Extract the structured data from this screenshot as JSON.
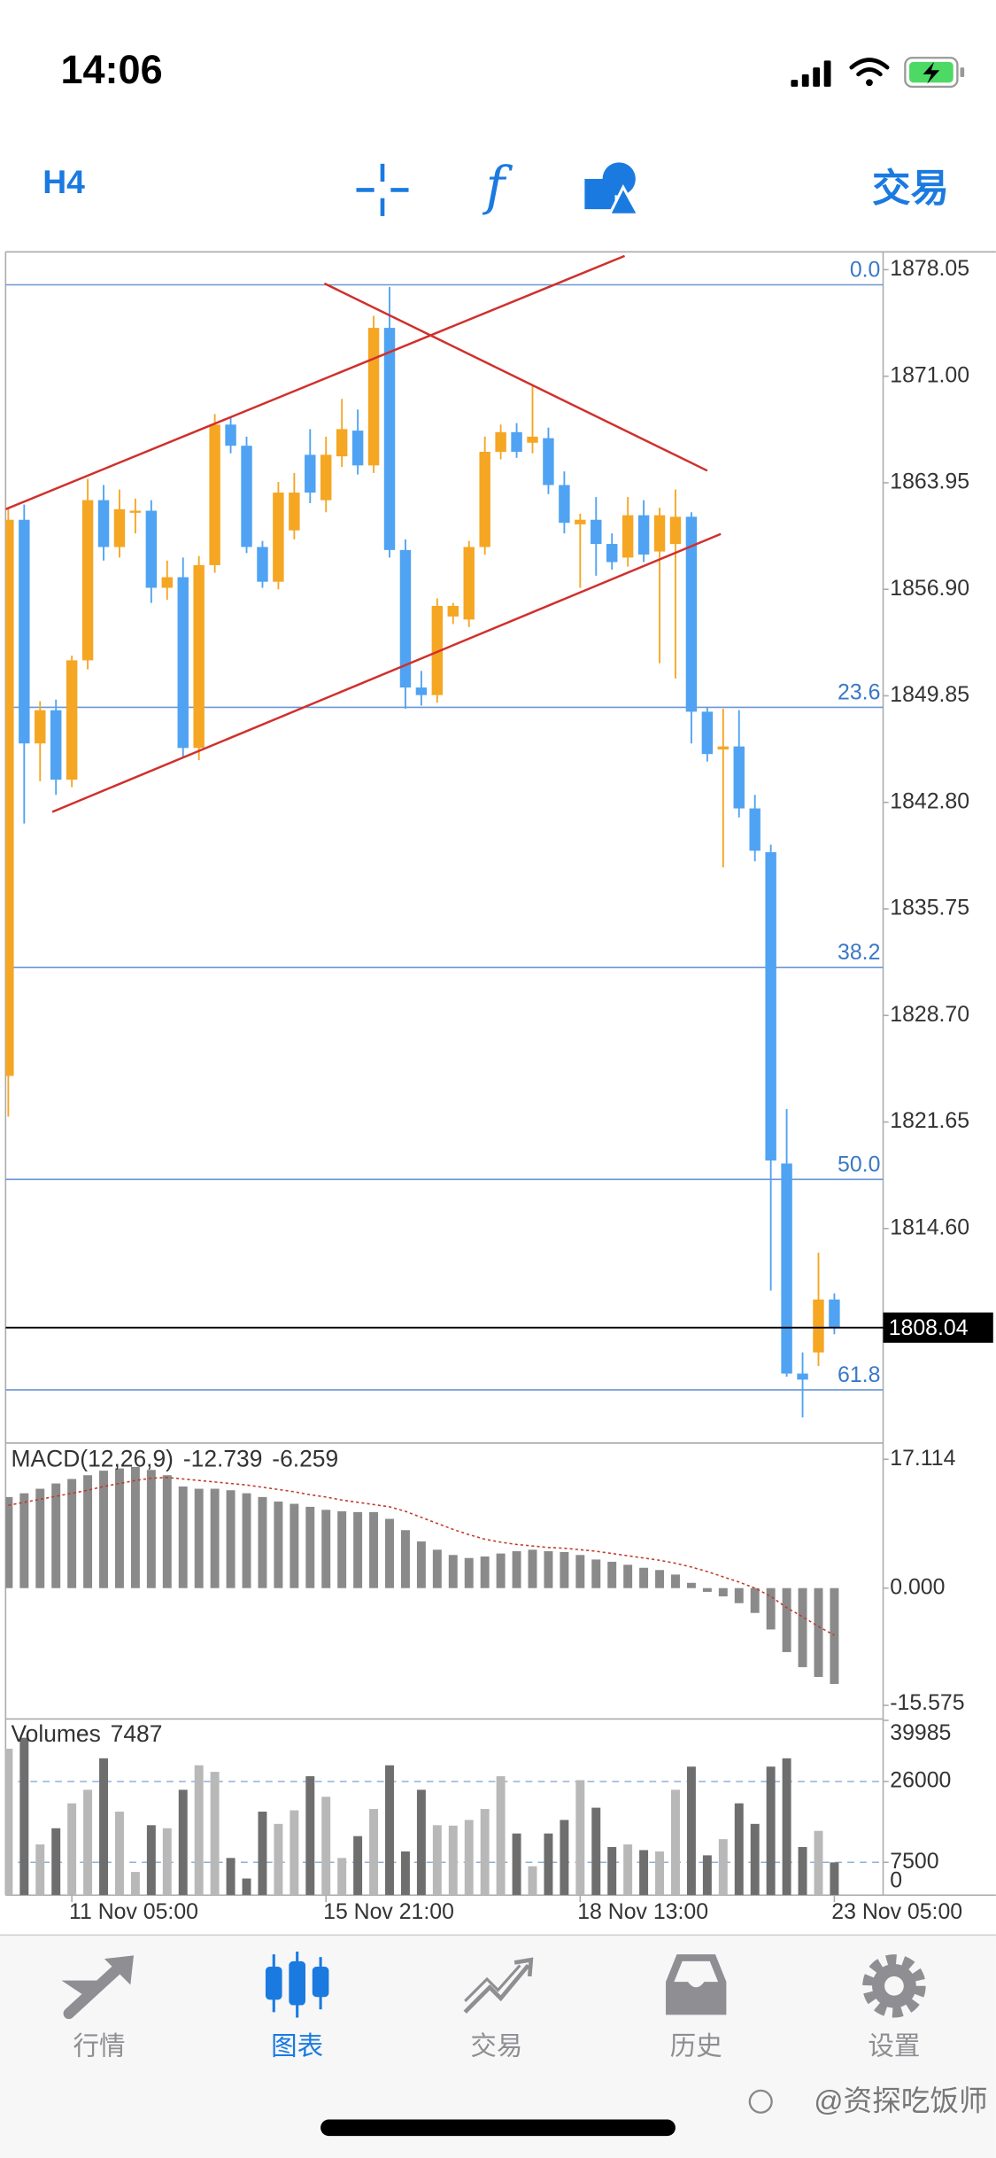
{
  "status_bar": {
    "time": "14:06"
  },
  "toolbar": {
    "timeframe": "H4",
    "trade": "交易"
  },
  "chart_data": [
    {
      "type": "candlestick",
      "open": [
        1824.7,
        1861.5,
        1846.7,
        1848.9,
        1844.3,
        1852.2,
        1862.8,
        1859.7,
        1862.0,
        1862.1,
        1857.0,
        1857.7,
        1846.4,
        1858.5,
        1867.8,
        1866.4,
        1859.7,
        1857.4,
        1860.8,
        1865.8,
        1862.8,
        1865.7,
        1867.4,
        1865.1,
        1874.2,
        1859.5,
        1850.4,
        1849.9,
        1855.1,
        1854.9,
        1859.7,
        1866.0,
        1867.3,
        1866.6,
        1866.9,
        1863.8,
        1861.2,
        1861.5,
        1859.9,
        1859.0,
        1861.8,
        1859.4,
        1859.9,
        1861.7,
        1848.8,
        1846.3,
        1846.5,
        1842.4,
        1839.5,
        1818.9,
        1805.0,
        1806.4,
        1809.9
      ],
      "high": [
        1862.3,
        1862.5,
        1849.5,
        1849.6,
        1852.5,
        1864.2,
        1863.8,
        1863.5,
        1862.9,
        1862.8,
        1858.8,
        1859.0,
        1859.1,
        1868.5,
        1868.3,
        1867.0,
        1860.1,
        1864.0,
        1864.6,
        1867.5,
        1867.0,
        1869.5,
        1868.8,
        1875.0,
        1876.9,
        1860.2,
        1851.5,
        1856.3,
        1856.0,
        1860.1,
        1867.0,
        1867.8,
        1867.9,
        1870.4,
        1867.6,
        1864.7,
        1861.9,
        1863.0,
        1860.6,
        1863.0,
        1862.8,
        1862.3,
        1863.5,
        1862.0,
        1849.1,
        1849.0,
        1848.9,
        1843.3,
        1840.0,
        1822.5,
        1806.4,
        1813.0,
        1810.3
      ],
      "low": [
        1822.0,
        1841.4,
        1844.2,
        1843.3,
        1843.8,
        1851.6,
        1858.8,
        1859.0,
        1860.6,
        1856.0,
        1856.2,
        1845.8,
        1845.6,
        1858.0,
        1865.9,
        1859.3,
        1857.0,
        1856.9,
        1860.2,
        1862.6,
        1862.0,
        1865.0,
        1864.5,
        1864.6,
        1859.0,
        1849.0,
        1849.2,
        1849.4,
        1854.6,
        1854.4,
        1859.2,
        1865.5,
        1865.6,
        1865.9,
        1863.2,
        1860.6,
        1857.0,
        1857.8,
        1858.2,
        1858.4,
        1858.7,
        1852.0,
        1851.0,
        1846.7,
        1845.5,
        1838.5,
        1841.8,
        1838.9,
        1810.5,
        1804.8,
        1802.1,
        1805.5,
        1807.6
      ],
      "close": [
        1861.5,
        1846.7,
        1848.9,
        1844.3,
        1852.2,
        1862.8,
        1859.7,
        1862.2,
        1862.1,
        1857.0,
        1857.7,
        1846.4,
        1858.5,
        1867.8,
        1866.4,
        1859.7,
        1857.4,
        1863.3,
        1863.3,
        1863.3,
        1865.8,
        1867.5,
        1865.1,
        1874.2,
        1859.5,
        1850.4,
        1849.9,
        1855.8,
        1855.8,
        1859.7,
        1866.0,
        1867.3,
        1866.0,
        1867.0,
        1863.8,
        1861.3,
        1861.5,
        1859.9,
        1858.7,
        1861.8,
        1859.2,
        1861.8,
        1861.7,
        1848.8,
        1846.0,
        1846.5,
        1842.4,
        1839.6,
        1819.1,
        1805.0,
        1804.6,
        1809.9,
        1808.0
      ],
      "up_color": "#f5a623",
      "down_color": "#4fa3f2",
      "xlim": [
        -0.17,
        55.07
      ],
      "xticks": [
        {
          "value": 4,
          "label": "11 Nov 05:00"
        },
        {
          "value": 20,
          "label": "15 Nov 21:00"
        },
        {
          "value": 36,
          "label": "18 Nov 13:00"
        },
        {
          "value": 52,
          "label": "23 Nov 05:00"
        }
      ],
      "ylim": [
        1800.45,
        1879.23
      ],
      "yticks": [
        1878.05,
        {
          "value": 1871,
          "label": "1871.00"
        },
        1863.95,
        {
          "value": 1856.9,
          "label": "1856.90"
        },
        1849.85,
        {
          "value": 1842.8,
          "label": "1842.80"
        },
        1835.75,
        {
          "value": 1828.7,
          "label": "1828.70"
        },
        1821.65,
        {
          "value": 1814.6,
          "label": "1814.60"
        }
      ],
      "current_price": 1808.04,
      "fib_levels": [
        {
          "label": "0.0",
          "value": 1877.05
        },
        {
          "label": "23.6",
          "value": 1849.09
        },
        {
          "label": "38.2",
          "value": 1831.87
        },
        {
          "label": "50.0",
          "value": 1817.85
        },
        {
          "label": "61.8",
          "value": 1803.92
        }
      ],
      "fib_color": "#6a97d4",
      "trendlines": [
        {
          "from": [
            -0.17,
            1862.2
          ],
          "to": [
            38.8,
            1878.96
          ]
        },
        {
          "from": [
            2.77,
            1842.17
          ],
          "to": [
            44.85,
            1860.56
          ]
        },
        {
          "from": [
            19.9,
            1877.14
          ],
          "to": [
            44.0,
            1864.75
          ]
        }
      ],
      "trendline_color": "#d0302c"
    },
    {
      "type": "bar",
      "name": "MACD(12,26,9)",
      "values": [
        12.1,
        12.6,
        13.2,
        13.9,
        14.5,
        15.0,
        15.6,
        15.9,
        16.1,
        15.7,
        15.0,
        13.5,
        13.2,
        13.2,
        13.0,
        12.6,
        12.1,
        11.5,
        11.2,
        10.8,
        10.4,
        10.2,
        10.1,
        10.1,
        9.2,
        7.7,
        6.2,
        5.1,
        4.4,
        4.0,
        4.2,
        4.6,
        4.9,
        5.1,
        4.9,
        4.8,
        4.4,
        3.8,
        3.5,
        3.1,
        2.7,
        2.4,
        1.8,
        0.7,
        -0.5,
        -1.1,
        -2.0,
        -3.3,
        -5.5,
        -8.5,
        -10.5,
        -11.8,
        -12.739
      ],
      "signal": [
        11.0,
        11.4,
        11.8,
        12.2,
        12.6,
        13.0,
        13.5,
        13.9,
        14.3,
        14.6,
        14.7,
        14.5,
        14.3,
        14.1,
        13.9,
        13.7,
        13.4,
        13.1,
        12.8,
        12.4,
        12.1,
        11.7,
        11.4,
        11.1,
        10.8,
        10.2,
        9.4,
        8.6,
        7.8,
        7.1,
        6.5,
        6.1,
        5.8,
        5.6,
        5.4,
        5.3,
        5.1,
        4.9,
        4.6,
        4.3,
        4.0,
        3.7,
        3.3,
        2.8,
        2.2,
        1.5,
        0.8,
        0.0,
        -1.1,
        -2.6,
        -3.8,
        -5.1,
        -6.259
      ],
      "color": "#8a8a8a",
      "signal_color": "#c0392b",
      "ylim": [
        -17.2,
        19.0
      ],
      "yticks": [
        17.114,
        {
          "value": 0,
          "label": "0.000"
        },
        -15.575
      ]
    },
    {
      "type": "bar",
      "name": "Volumes",
      "values": [
        33500,
        36000,
        11600,
        15300,
        21000,
        24100,
        31300,
        19100,
        5300,
        16000,
        15300,
        24100,
        29700,
        28200,
        8500,
        3800,
        19100,
        16300,
        19400,
        27200,
        22500,
        8500,
        13500,
        19700,
        29700,
        10000,
        24100,
        16000,
        15900,
        17200,
        19700,
        27200,
        14100,
        6600,
        14100,
        17200,
        26300,
        20000,
        11000,
        11600,
        10300,
        10000,
        24100,
        29400,
        9100,
        12800,
        21000,
        16300,
        29400,
        31300,
        11000,
        14700,
        7487
      ],
      "up_color": "#b8b8b8",
      "down_color": "#6e6e6e",
      "ylim": [
        0,
        39985
      ],
      "yticks": [
        39985,
        26000,
        7500,
        0
      ]
    }
  ],
  "tabs": [
    {
      "label": "行情"
    },
    {
      "label": "图表"
    },
    {
      "label": "交易"
    },
    {
      "label": "历史"
    },
    {
      "label": "设置"
    }
  ],
  "active_tab": 1,
  "watermark": "@资探吃饭师"
}
